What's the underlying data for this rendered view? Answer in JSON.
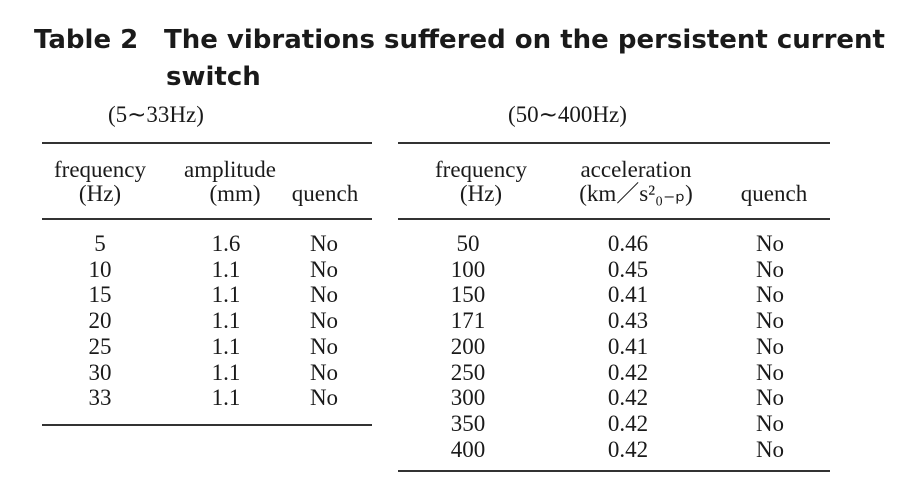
{
  "title": {
    "label": "Table 2",
    "text_line1": "The vibrations suffered on the persistent current",
    "text_line2": "switch"
  },
  "left": {
    "caption": "(5∼33Hz)",
    "headers": {
      "frequency": "frequency",
      "frequency_unit": "(Hz)",
      "amplitude": "amplitude",
      "amplitude_unit": "(mm)",
      "quench": "quench"
    },
    "rows": [
      [
        "5",
        "1.6",
        "No"
      ],
      [
        "10",
        "1.1",
        "No"
      ],
      [
        "15",
        "1.1",
        "No"
      ],
      [
        "20",
        "1.1",
        "No"
      ],
      [
        "25",
        "1.1",
        "No"
      ],
      [
        "30",
        "1.1",
        "No"
      ],
      [
        "33",
        "1.1",
        "No"
      ]
    ]
  },
  "right": {
    "caption": "(50∼400Hz)",
    "headers": {
      "frequency": "frequency",
      "frequency_unit": "(Hz)",
      "acceleration": "acceleration",
      "acceleration_unit": "(km／s²₀₋ₚ)",
      "quench": "quench"
    },
    "rows": [
      [
        "50",
        "0.46",
        "No"
      ],
      [
        "100",
        "0.45",
        "No"
      ],
      [
        "150",
        "0.41",
        "No"
      ],
      [
        "171",
        "0.43",
        "No"
      ],
      [
        "200",
        "0.41",
        "No"
      ],
      [
        "250",
        "0.42",
        "No"
      ],
      [
        "300",
        "0.42",
        "No"
      ],
      [
        "350",
        "0.42",
        "No"
      ],
      [
        "400",
        "0.42",
        "No"
      ]
    ]
  }
}
